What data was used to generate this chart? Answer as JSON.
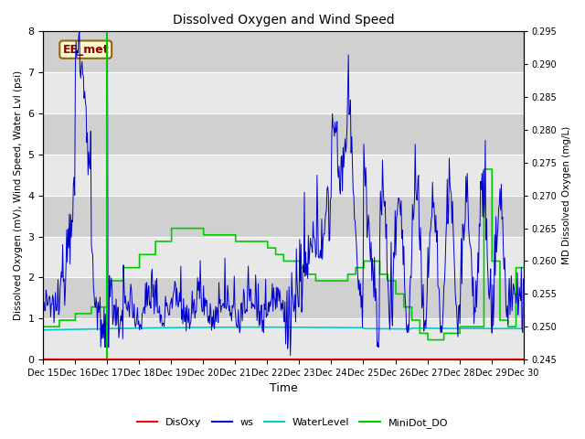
{
  "title": "Dissolved Oxygen and Wind Speed",
  "ylabel_left": "Dissolved Oxygen (mV), Wind Speed, Water Lvl (psi)",
  "ylabel_right": "MD Dissolved Oxygen (mg/L)",
  "xlabel": "Time",
  "ylim_left": [
    0.0,
    8.0
  ],
  "ylim_right": [
    0.245,
    0.295
  ],
  "yticks_left": [
    0.0,
    1.0,
    2.0,
    3.0,
    4.0,
    5.0,
    6.0,
    7.0,
    8.0
  ],
  "yticks_right": [
    0.245,
    0.25,
    0.255,
    0.26,
    0.265,
    0.27,
    0.275,
    0.28,
    0.285,
    0.29,
    0.295
  ],
  "xtick_labels": [
    "Dec 15",
    "Dec 16",
    "Dec 17",
    "Dec 18",
    "Dec 19",
    "Dec 20",
    "Dec 21",
    "Dec 22",
    "Dec 23",
    "Dec 24",
    "Dec 25",
    "Dec 26",
    "Dec 27",
    "Dec 28",
    "Dec 29",
    "Dec 30"
  ],
  "annotation_text": "EE_met",
  "annotation_color": "#8B0000",
  "annotation_bg": "#FFFACD",
  "annotation_border": "#8B6914",
  "disoxy_color": "#FF0000",
  "ws_color": "#0000CC",
  "waterlevel_color": "#00CCCC",
  "minidot_color": "#00CC00",
  "bg_light": "#E8E8E8",
  "bg_dark": "#D0D0D0",
  "grid_color": "#FFFFFF"
}
